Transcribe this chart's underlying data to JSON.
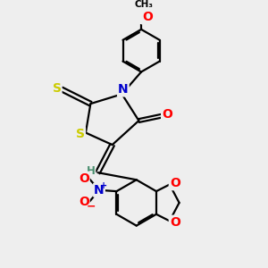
{
  "bg_color": "#eeeeee",
  "bond_color": "#000000",
  "bond_width": 1.6,
  "atom_colors": {
    "S": "#cccc00",
    "N": "#0000cc",
    "O": "#ff0000",
    "C": "#000000",
    "H": "#4a8f6f"
  },
  "font_size_atom": 10,
  "font_size_small": 8.5
}
